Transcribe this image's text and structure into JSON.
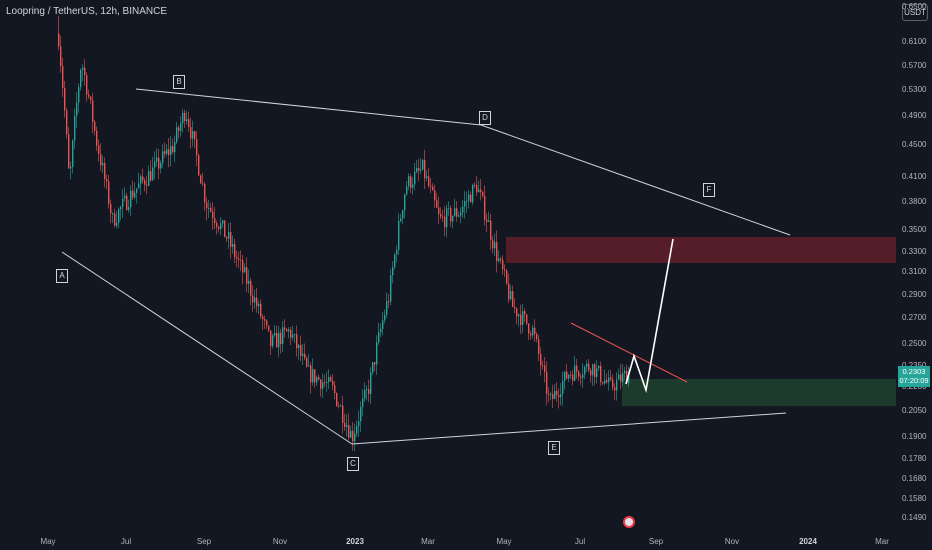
{
  "header": {
    "title": "Loopring / TetherUS, 12h, BINANCE",
    "currency": "USDT"
  },
  "price_tag": {
    "price": "0.2303",
    "countdown": "07:20:09"
  },
  "price_scale": [
    "0.6500",
    "0.6100",
    "0.5700",
    "0.5300",
    "0.4900",
    "0.4500",
    "0.4100",
    "0.3800",
    "0.3500",
    "0.3300",
    "0.3100",
    "0.2900",
    "0.2700",
    "0.2500",
    "0.2350",
    "0.2200",
    "0.2050",
    "0.1900",
    "0.1780",
    "0.1680",
    "0.1580",
    "0.1490"
  ],
  "time_scale": [
    {
      "label": "May",
      "bold": false
    },
    {
      "label": "Jul",
      "bold": false
    },
    {
      "label": "Sep",
      "bold": false
    },
    {
      "label": "Nov",
      "bold": false
    },
    {
      "label": "2023",
      "bold": true
    },
    {
      "label": "Mar",
      "bold": false
    },
    {
      "label": "May",
      "bold": false
    },
    {
      "label": "Jul",
      "bold": false
    },
    {
      "label": "Sep",
      "bold": false
    },
    {
      "label": "Nov",
      "bold": false
    },
    {
      "label": "2024",
      "bold": true
    },
    {
      "label": "Mar",
      "bold": false
    }
  ],
  "pattern_points": [
    "A",
    "B",
    "C",
    "D",
    "E",
    "F"
  ],
  "colors": {
    "background": "#131722",
    "bull": "#26a69a",
    "bear": "#ef5350",
    "resistance_zone": "#5c1e28",
    "support_zone": "#1e3d2e",
    "trendline": "#d1d4dc"
  },
  "chart_data": {
    "type": "candlestick",
    "symbol": "LRC/USDT",
    "interval": "12h",
    "exchange": "BINANCE",
    "last_price": 0.2303,
    "resistance_zone": [
      0.315,
      0.342
    ],
    "support_zone": [
      0.21,
      0.228
    ],
    "swing_points": [
      {
        "label": "A",
        "date": "2022-05",
        "price": 0.33
      },
      {
        "label": "B",
        "date": "2022-08",
        "price": 0.52
      },
      {
        "label": "C",
        "date": "2023-01",
        "price": 0.187
      },
      {
        "label": "D",
        "date": "2023-04",
        "price": 0.478
      },
      {
        "label": "E",
        "date": "2023-06",
        "price": 0.19
      },
      {
        "label": "F",
        "date": "2023-10",
        "price": 0.405
      }
    ],
    "close_path": [
      [
        "2022-05-01",
        0.62
      ],
      [
        "2022-05-10",
        0.4
      ],
      [
        "2022-05-20",
        0.58
      ],
      [
        "2022-06-01",
        0.46
      ],
      [
        "2022-06-15",
        0.36
      ],
      [
        "2022-07-01",
        0.39
      ],
      [
        "2022-07-20",
        0.42
      ],
      [
        "2022-08-05",
        0.45
      ],
      [
        "2022-08-15",
        0.5
      ],
      [
        "2022-09-01",
        0.38
      ],
      [
        "2022-09-20",
        0.34
      ],
      [
        "2022-10-10",
        0.29
      ],
      [
        "2022-10-25",
        0.25
      ],
      [
        "2022-11-10",
        0.26
      ],
      [
        "2022-11-25",
        0.23
      ],
      [
        "2022-12-15",
        0.22
      ],
      [
        "2023-01-01",
        0.19
      ],
      [
        "2023-01-15",
        0.22
      ],
      [
        "2023-02-01",
        0.29
      ],
      [
        "2023-02-15",
        0.4
      ],
      [
        "2023-03-01",
        0.42
      ],
      [
        "2023-03-15",
        0.36
      ],
      [
        "2023-04-01",
        0.37
      ],
      [
        "2023-04-15",
        0.4
      ],
      [
        "2023-05-01",
        0.33
      ],
      [
        "2023-05-15",
        0.28
      ],
      [
        "2023-06-01",
        0.26
      ],
      [
        "2023-06-15",
        0.21
      ],
      [
        "2023-07-01",
        0.23
      ],
      [
        "2023-07-20",
        0.235
      ],
      [
        "2023-08-05",
        0.22
      ],
      [
        "2023-08-20",
        0.2303
      ]
    ]
  }
}
